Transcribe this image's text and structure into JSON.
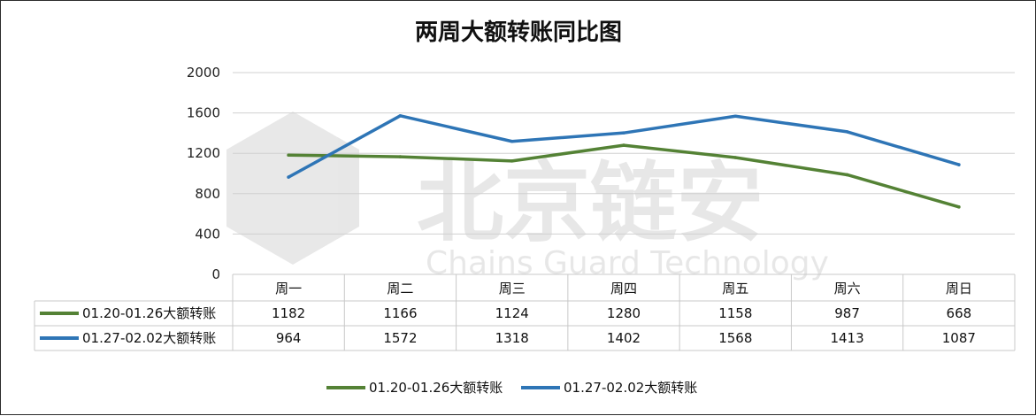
{
  "chart_data": {
    "type": "line",
    "title": "两周大额转账同比图",
    "categories": [
      "周一",
      "周二",
      "周三",
      "周四",
      "周五",
      "周六",
      "周日"
    ],
    "series": [
      {
        "name": "01.20-01.26大额转账",
        "color": "#548235",
        "values": [
          1182,
          1166,
          1124,
          1280,
          1158,
          987,
          668
        ]
      },
      {
        "name": "01.27-02.02大额转账",
        "color": "#2e75b6",
        "values": [
          964,
          1572,
          1318,
          1402,
          1568,
          1413,
          1087
        ]
      }
    ],
    "yticks": [
      0,
      400,
      800,
      1200,
      1600,
      2000
    ],
    "ylim": [
      0,
      2000
    ],
    "grid": true,
    "legend_position": "bottom",
    "data_table": true
  },
  "watermark": {
    "text_cn": "北京链安",
    "text_en": "Chains Guard Technology"
  }
}
